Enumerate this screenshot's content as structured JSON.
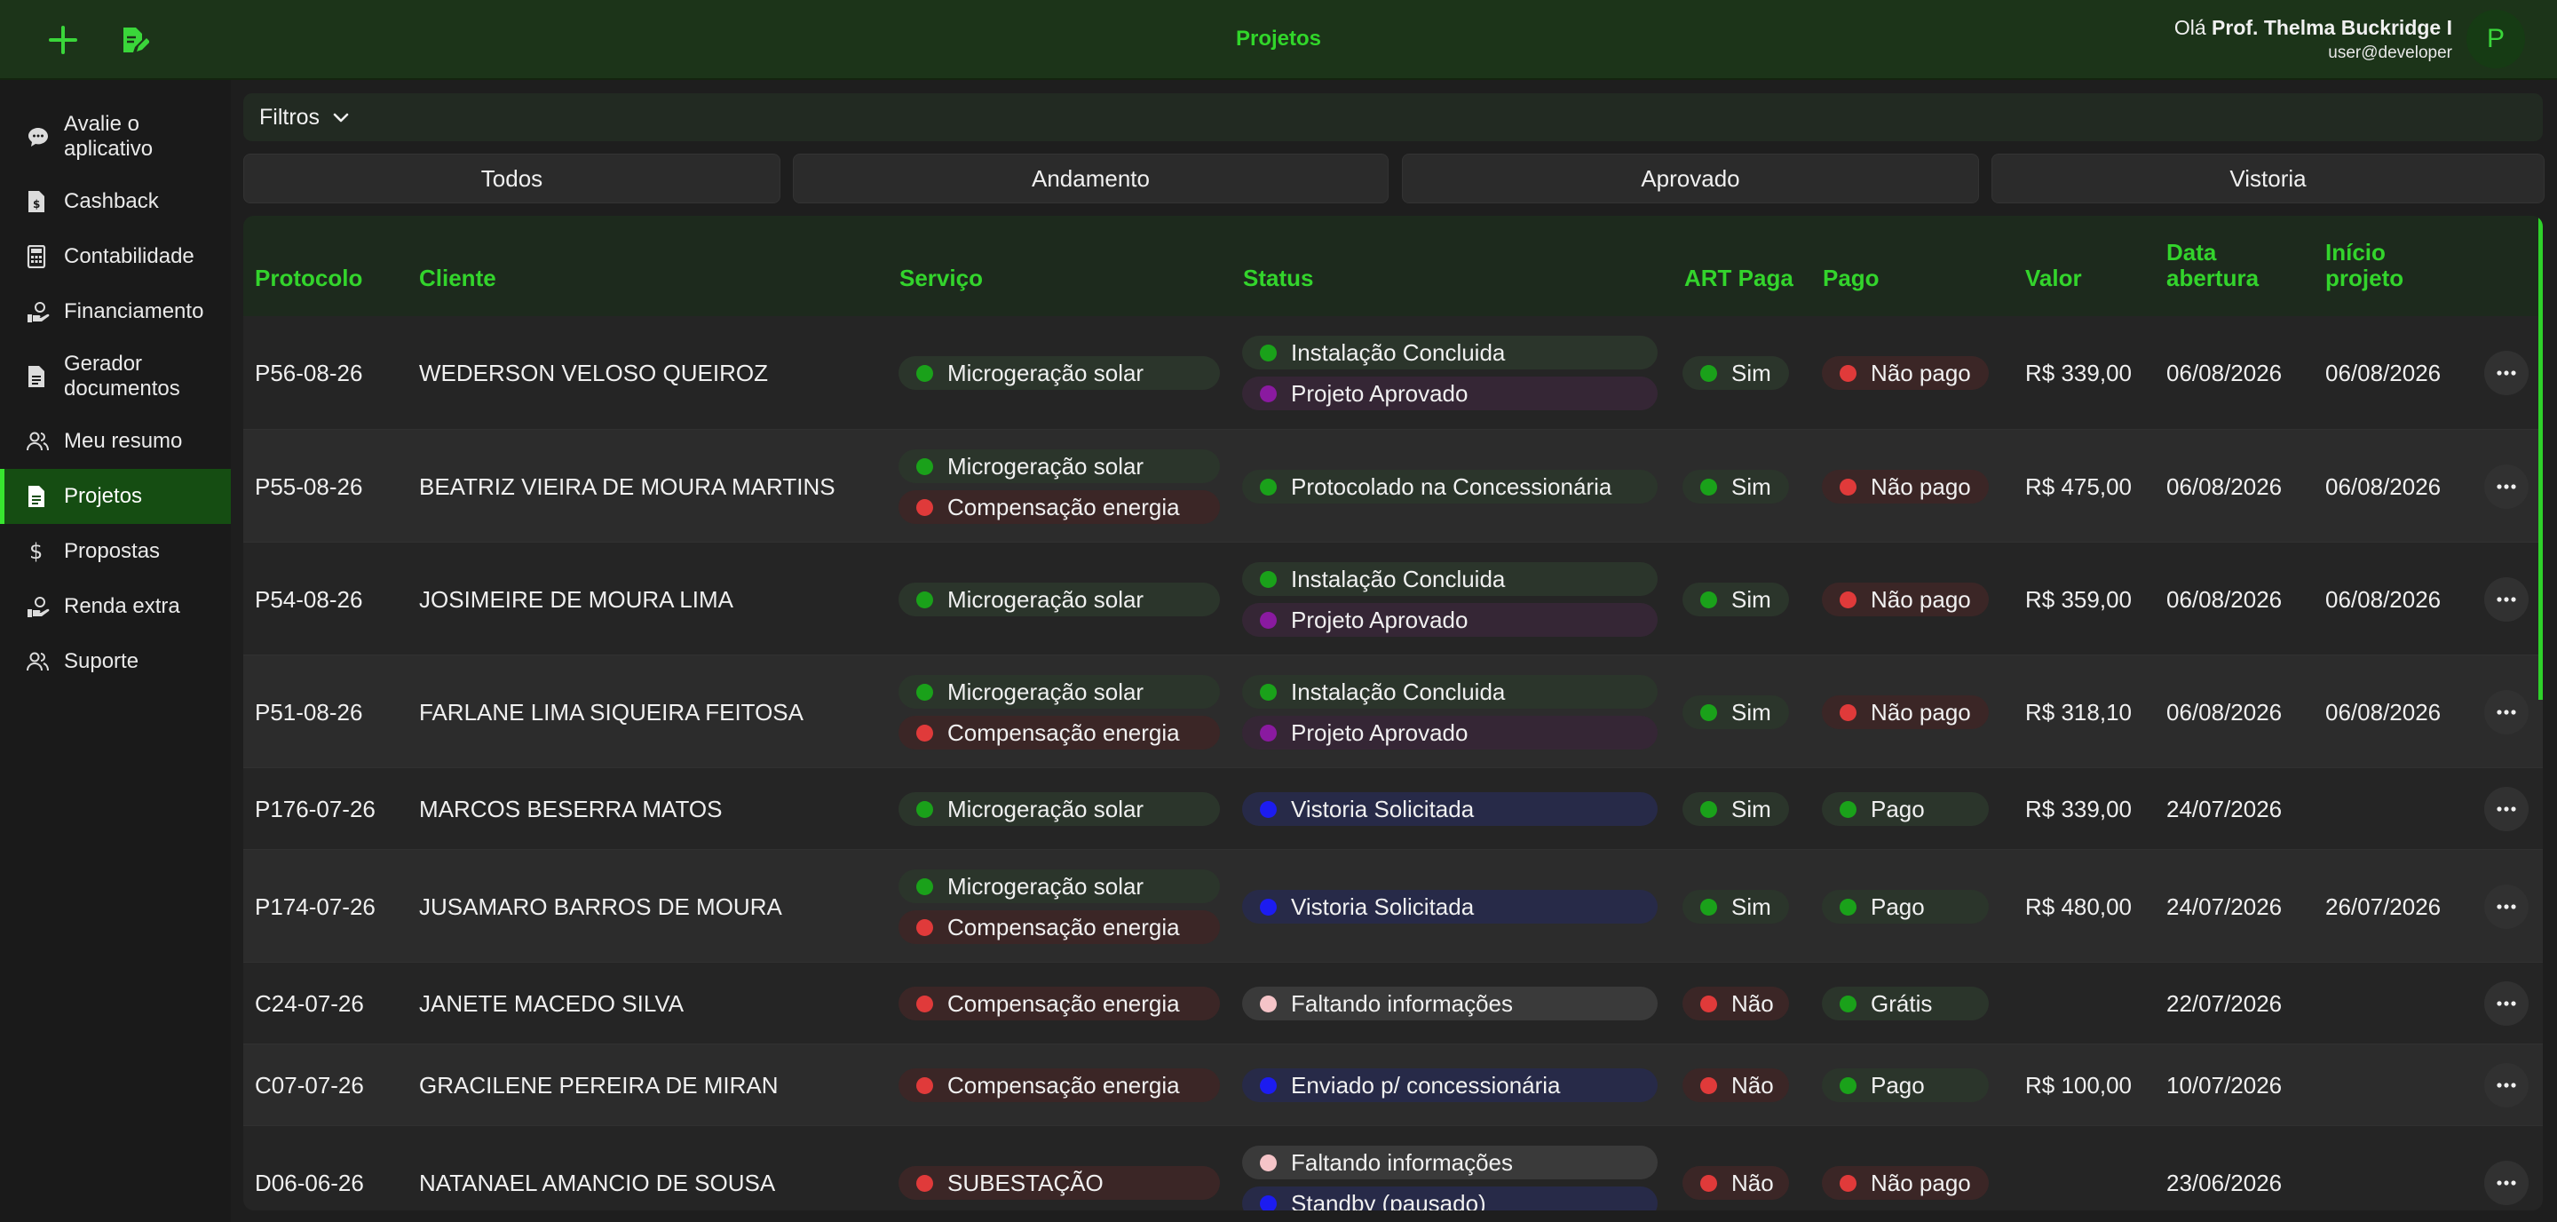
{
  "header": {
    "title": "Projetos",
    "greeting": "Olá",
    "user_name": "Prof. Thelma Buckridge I",
    "user_email": "user@developer",
    "avatar_letter": "P",
    "icons": [
      "plus-icon",
      "edit-document-icon"
    ]
  },
  "sidebar": {
    "items": [
      {
        "label": "Avalie o aplicativo",
        "icon": "chat-bubble-icon"
      },
      {
        "label": "Cashback",
        "icon": "cashback-document-icon"
      },
      {
        "label": "Contabilidade",
        "icon": "calculator-icon"
      },
      {
        "label": "Financiamento",
        "icon": "hand-money-icon"
      },
      {
        "label": "Gerador documentos",
        "icon": "document-icon"
      },
      {
        "label": "Meu resumo",
        "icon": "users-icon"
      },
      {
        "label": "Projetos",
        "icon": "document-icon",
        "active": true
      },
      {
        "label": "Propostas",
        "icon": "dollar-icon"
      },
      {
        "label": "Renda extra",
        "icon": "hand-money-icon"
      },
      {
        "label": "Suporte",
        "icon": "users-icon"
      }
    ]
  },
  "filters": {
    "label": "Filtros"
  },
  "tabs": [
    {
      "label": "Todos"
    },
    {
      "label": "Andamento"
    },
    {
      "label": "Aprovado"
    },
    {
      "label": "Vistoria"
    }
  ],
  "colors": {
    "accent": "#31d62a",
    "green": "#1aa11a",
    "red": "#e03a3a",
    "purple": "#8a1aa0",
    "blue": "#1c1cf0",
    "pink": "#f5c4c8"
  },
  "table": {
    "headers": {
      "protocolo": "Protocolo",
      "cliente": "Cliente",
      "servico": "Serviço",
      "status": "Status",
      "art_paga": "ART Paga",
      "pago": "Pago",
      "valor": "Valor",
      "data_abertura_1": "Data",
      "data_abertura_2": "abertura",
      "inicio_projeto_1": "Início",
      "inicio_projeto_2": "projeto"
    },
    "rows": [
      {
        "protocolo": "P56-08-26",
        "cliente": "WEDERSON VELOSO QUEIROZ",
        "servicos": [
          {
            "label": "Microgeração solar",
            "color": "green"
          }
        ],
        "status": [
          {
            "label": "Instalação Concluida",
            "color": "green"
          },
          {
            "label": "Projeto Aprovado",
            "color": "purple"
          }
        ],
        "art": {
          "label": "Sim",
          "color": "green"
        },
        "pago": {
          "label": "Não pago",
          "color": "red"
        },
        "valor": "R$ 339,00",
        "data_abertura": "06/08/2026",
        "inicio_projeto": "06/08/2026"
      },
      {
        "protocolo": "P55-08-26",
        "cliente": "BEATRIZ VIEIRA DE MOURA MARTINS",
        "servicos": [
          {
            "label": "Microgeração solar",
            "color": "green"
          },
          {
            "label": "Compensação energia",
            "color": "red"
          }
        ],
        "status": [
          {
            "label": "Protocolado na Concessionária",
            "color": "green"
          }
        ],
        "art": {
          "label": "Sim",
          "color": "green"
        },
        "pago": {
          "label": "Não pago",
          "color": "red"
        },
        "valor": "R$ 475,00",
        "data_abertura": "06/08/2026",
        "inicio_projeto": "06/08/2026"
      },
      {
        "protocolo": "P54-08-26",
        "cliente": "JOSIMEIRE DE MOURA LIMA",
        "servicos": [
          {
            "label": "Microgeração solar",
            "color": "green"
          }
        ],
        "status": [
          {
            "label": "Instalação Concluida",
            "color": "green"
          },
          {
            "label": "Projeto Aprovado",
            "color": "purple"
          }
        ],
        "art": {
          "label": "Sim",
          "color": "green"
        },
        "pago": {
          "label": "Não pago",
          "color": "red"
        },
        "valor": "R$ 359,00",
        "data_abertura": "06/08/2026",
        "inicio_projeto": "06/08/2026"
      },
      {
        "protocolo": "P51-08-26",
        "cliente": "FARLANE LIMA SIQUEIRA FEITOSA",
        "servicos": [
          {
            "label": "Microgeração solar",
            "color": "green"
          },
          {
            "label": "Compensação energia",
            "color": "red"
          }
        ],
        "status": [
          {
            "label": "Instalação Concluida",
            "color": "green"
          },
          {
            "label": "Projeto Aprovado",
            "color": "purple"
          }
        ],
        "art": {
          "label": "Sim",
          "color": "green"
        },
        "pago": {
          "label": "Não pago",
          "color": "red"
        },
        "valor": "R$ 318,10",
        "data_abertura": "06/08/2026",
        "inicio_projeto": "06/08/2026"
      },
      {
        "protocolo": "P176-07-26",
        "cliente": "MARCOS BESERRA MATOS",
        "servicos": [
          {
            "label": "Microgeração solar",
            "color": "green"
          }
        ],
        "status": [
          {
            "label": "Vistoria Solicitada",
            "color": "blue"
          }
        ],
        "art": {
          "label": "Sim",
          "color": "green"
        },
        "pago": {
          "label": "Pago",
          "color": "green"
        },
        "valor": "R$ 339,00",
        "data_abertura": "24/07/2026",
        "inicio_projeto": ""
      },
      {
        "protocolo": "P174-07-26",
        "cliente": "JUSAMARO BARROS DE MOURA",
        "servicos": [
          {
            "label": "Microgeração solar",
            "color": "green"
          },
          {
            "label": "Compensação energia",
            "color": "red"
          }
        ],
        "status": [
          {
            "label": "Vistoria Solicitada",
            "color": "blue"
          }
        ],
        "art": {
          "label": "Sim",
          "color": "green"
        },
        "pago": {
          "label": "Pago",
          "color": "green"
        },
        "valor": "R$ 480,00",
        "data_abertura": "24/07/2026",
        "inicio_projeto": "26/07/2026"
      },
      {
        "protocolo": "C24-07-26",
        "cliente": "JANETE MACEDO SILVA",
        "servicos": [
          {
            "label": "Compensação energia",
            "color": "red"
          }
        ],
        "status": [
          {
            "label": "Faltando informações",
            "color": "pink"
          }
        ],
        "art": {
          "label": "Não",
          "color": "red"
        },
        "pago": {
          "label": "Grátis",
          "color": "green"
        },
        "valor": "",
        "data_abertura": "22/07/2026",
        "inicio_projeto": ""
      },
      {
        "protocolo": "C07-07-26",
        "cliente": "GRACILENE PEREIRA DE MIRAN",
        "servicos": [
          {
            "label": "Compensação energia",
            "color": "red"
          }
        ],
        "status": [
          {
            "label": "Enviado p/ concessionária",
            "color": "blue"
          }
        ],
        "art": {
          "label": "Não",
          "color": "red"
        },
        "pago": {
          "label": "Pago",
          "color": "green"
        },
        "valor": "R$ 100,00",
        "data_abertura": "10/07/2026",
        "inicio_projeto": ""
      },
      {
        "protocolo": "D06-06-26",
        "cliente": "NATANAEL AMANCIO DE SOUSA",
        "servicos": [
          {
            "label": "SUBESTAÇÃO",
            "color": "red"
          }
        ],
        "status": [
          {
            "label": "Faltando informações",
            "color": "pink"
          },
          {
            "label": "Standby (pausado)",
            "color": "blue"
          }
        ],
        "art": {
          "label": "Não",
          "color": "red"
        },
        "pago": {
          "label": "Não pago",
          "color": "red"
        },
        "valor": "",
        "data_abertura": "23/06/2026",
        "inicio_projeto": ""
      }
    ]
  }
}
